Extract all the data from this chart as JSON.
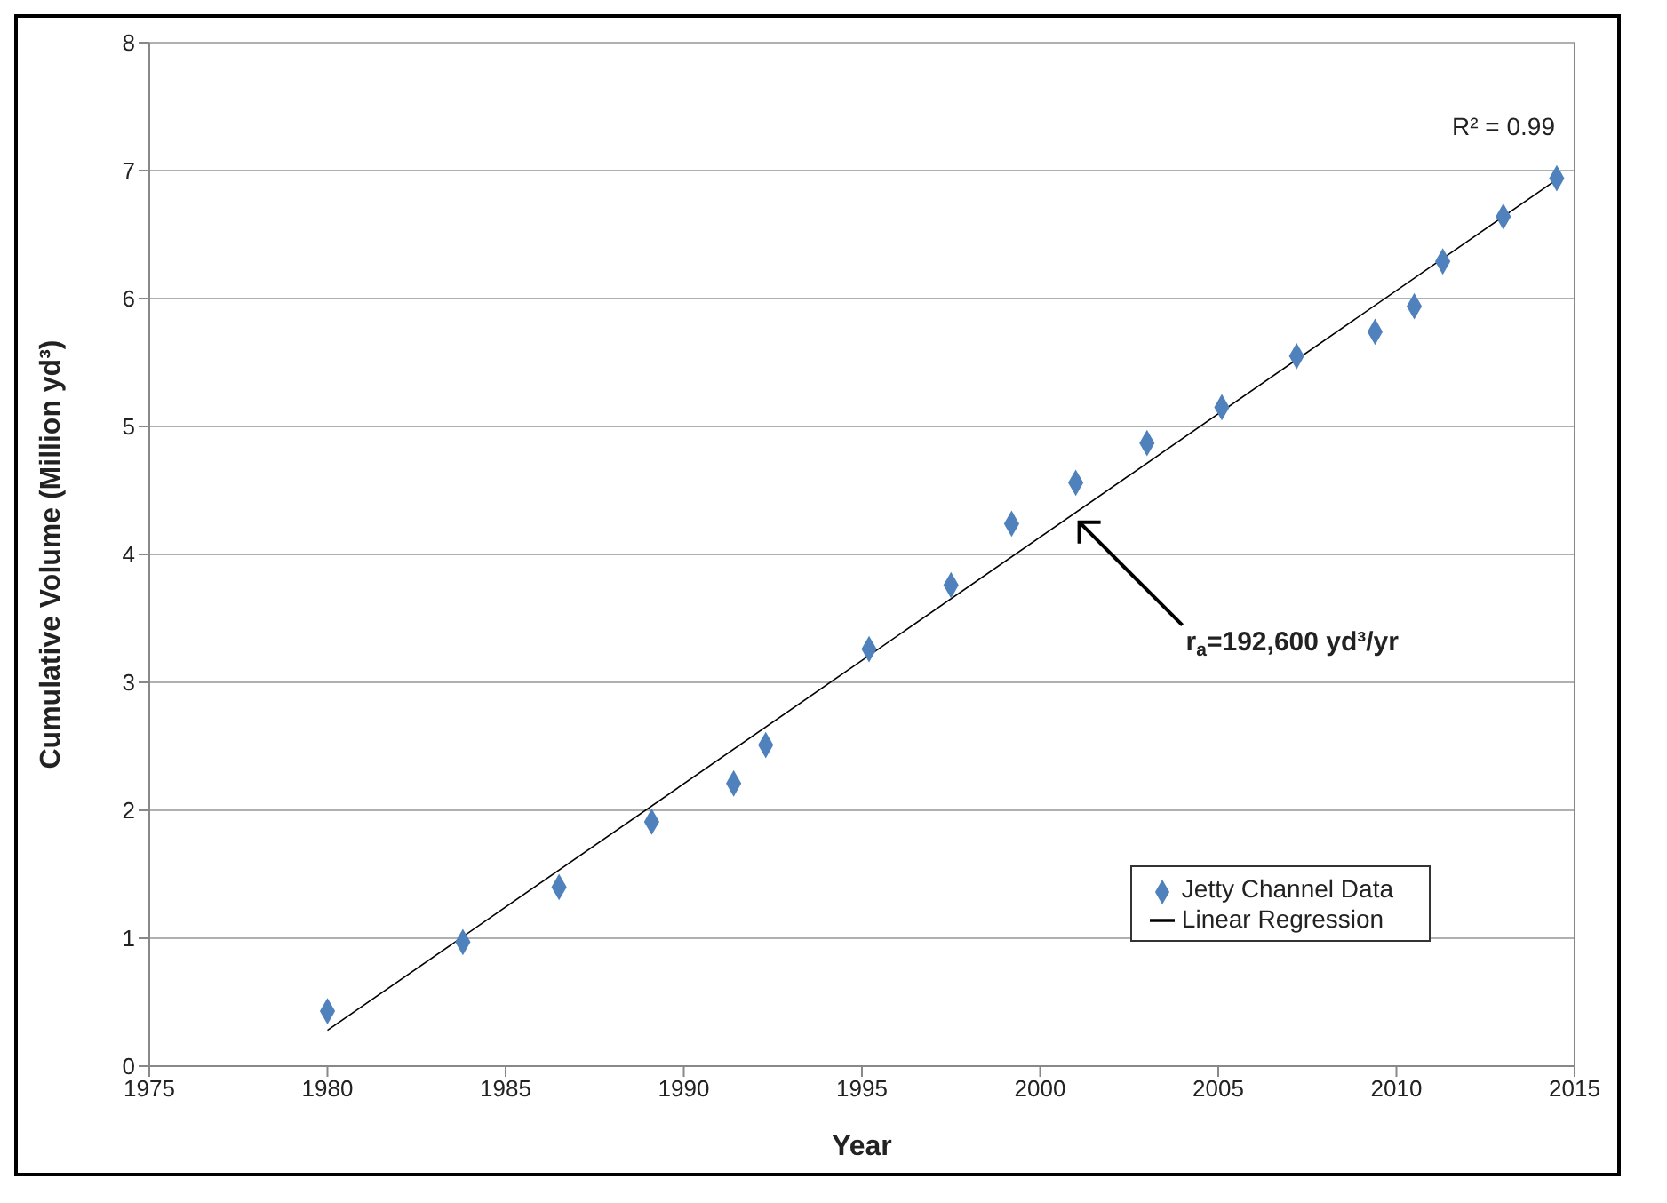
{
  "chart_data": {
    "type": "scatter",
    "xlabel": "Year",
    "ylabel": "Cumulative Volume (Million yd³)",
    "xlim": [
      1975,
      2015
    ],
    "xticks": [
      1975,
      1980,
      1985,
      1990,
      1995,
      2000,
      2005,
      2010,
      2015
    ],
    "ylim": [
      0,
      8
    ],
    "yticks": [
      0,
      1,
      2,
      3,
      4,
      5,
      6,
      7,
      8
    ],
    "grid": "y",
    "legend": "bottom right",
    "marker": "diamond",
    "series": [
      {
        "name": "Jetty Channel Data",
        "color": "#4f81bd",
        "x": [
          1980.0,
          1983.8,
          1986.5,
          1989.1,
          1991.4,
          1992.3,
          1995.2,
          1997.5,
          1999.2,
          2001.0,
          2003.0,
          2005.1,
          2007.2,
          2009.4,
          2010.5,
          2011.3,
          2013.0,
          2014.5
        ],
        "values": [
          0.43,
          0.97,
          1.4,
          1.91,
          2.21,
          2.51,
          3.26,
          3.76,
          4.24,
          4.56,
          4.87,
          5.15,
          5.55,
          5.74,
          5.94,
          6.29,
          6.64,
          6.94
        ]
      },
      {
        "name": "Linear Regression",
        "type": "line",
        "color": "#000000",
        "marker": "none",
        "x": [
          1980.0,
          2014.5
        ],
        "values": [
          0.28,
          6.93
        ]
      }
    ],
    "annotations": [
      "R² = 0.99",
      {
        "text": "r$_{a}$=192,600 yd³/yr",
        "x": 2001.0,
        "y": 4.28
      }
    ]
  }
}
